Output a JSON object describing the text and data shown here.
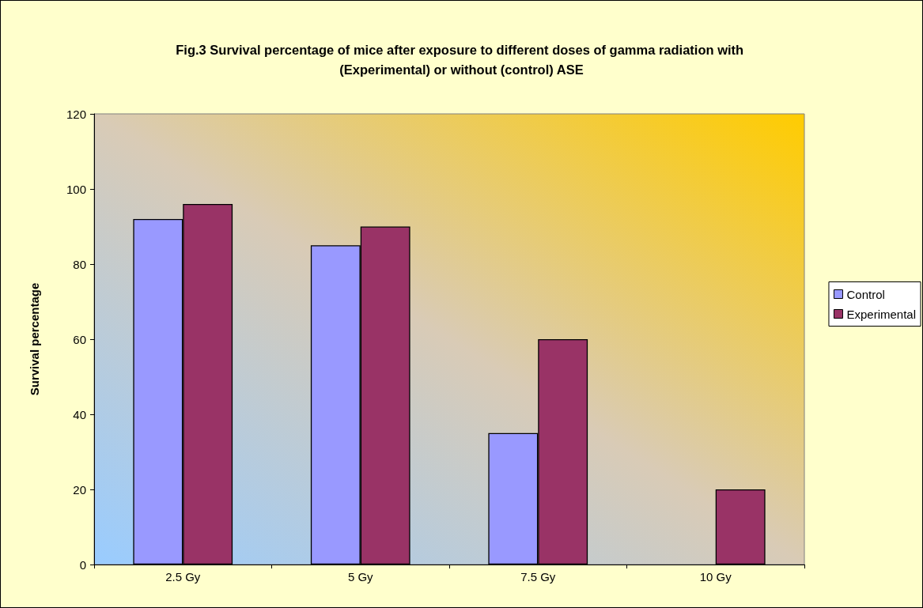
{
  "chart_data": {
    "type": "bar",
    "title": "Fig.3 Survival percentage of mice after exposure to different doses of gamma radiation with (Experimental) or without (control) ASE",
    "ylabel": "Survival percentage",
    "categories": [
      "2.5 Gy",
      "5 Gy",
      "7.5 Gy",
      "10 Gy"
    ],
    "series": [
      {
        "name": "Control",
        "color": "#9999ff",
        "values": [
          92,
          85,
          35,
          0
        ]
      },
      {
        "name": "Experimental",
        "color": "#993366",
        "values": [
          96,
          90,
          60,
          20
        ]
      }
    ],
    "ylim": [
      0,
      120
    ],
    "yticks": [
      0,
      20,
      40,
      60,
      80,
      100,
      120
    ],
    "grid": false,
    "legend": "right"
  }
}
